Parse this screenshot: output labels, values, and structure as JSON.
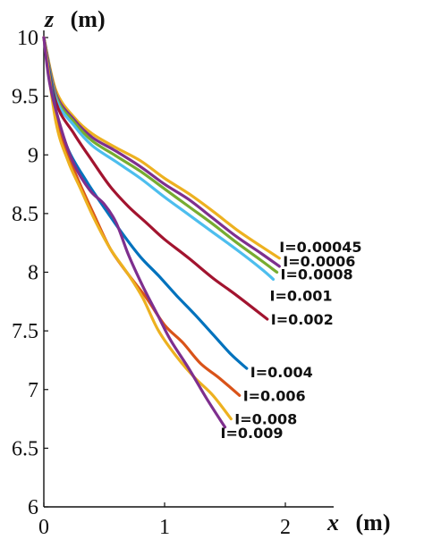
{
  "chart_data": {
    "type": "line",
    "title": "",
    "xlabel": {
      "var": "x",
      "unit": "(m)"
    },
    "ylabel": {
      "var": "z",
      "unit": "(m)"
    },
    "xlim": [
      0,
      2.4
    ],
    "ylim": [
      6,
      10
    ],
    "xticks": [
      0,
      1,
      2
    ],
    "yticks": [
      6,
      6.5,
      7,
      7.5,
      8,
      8.5,
      9,
      9.5,
      10
    ],
    "grid": false,
    "legend": "inline labels at line ends",
    "series": [
      {
        "name": "I=0.00045",
        "color": "#EDB120",
        "x": [
          0,
          0.1,
          0.25,
          0.4,
          0.6,
          0.8,
          1.0,
          1.2,
          1.4,
          1.6,
          1.8,
          1.95
        ],
        "y": [
          10,
          9.55,
          9.32,
          9.18,
          9.06,
          8.95,
          8.8,
          8.67,
          8.52,
          8.36,
          8.22,
          8.12
        ]
      },
      {
        "name": "I=0.0006",
        "color": "#7E2F8E",
        "x": [
          0,
          0.1,
          0.25,
          0.4,
          0.6,
          0.8,
          1.0,
          1.2,
          1.4,
          1.6,
          1.8,
          1.95
        ],
        "y": [
          10,
          9.52,
          9.3,
          9.15,
          9.03,
          8.9,
          8.75,
          8.62,
          8.46,
          8.3,
          8.16,
          8.05
        ]
      },
      {
        "name": "I=0.0008",
        "color": "#77AC30",
        "x": [
          0,
          0.1,
          0.25,
          0.4,
          0.6,
          0.8,
          1.0,
          1.2,
          1.4,
          1.6,
          1.8,
          1.93
        ],
        "y": [
          10,
          9.5,
          9.28,
          9.12,
          8.99,
          8.86,
          8.71,
          8.56,
          8.41,
          8.25,
          8.1,
          8.0
        ]
      },
      {
        "name": "I=0.001",
        "color": "#4DBEEE",
        "x": [
          0,
          0.1,
          0.25,
          0.4,
          0.6,
          0.8,
          1.0,
          1.2,
          1.4,
          1.6,
          1.8,
          1.9
        ],
        "y": [
          10,
          9.48,
          9.25,
          9.08,
          8.94,
          8.8,
          8.64,
          8.49,
          8.34,
          8.19,
          8.03,
          7.94
        ]
      },
      {
        "name": "I=0.002",
        "color": "#A2142F",
        "x": [
          0,
          0.1,
          0.25,
          0.4,
          0.55,
          0.7,
          0.85,
          1.0,
          1.2,
          1.4,
          1.6,
          1.85
        ],
        "y": [
          10,
          9.45,
          9.18,
          8.95,
          8.73,
          8.56,
          8.42,
          8.28,
          8.12,
          7.95,
          7.8,
          7.6
        ]
      },
      {
        "name": "I=0.004",
        "color": "#0072BD",
        "x": [
          0,
          0.1,
          0.2,
          0.35,
          0.5,
          0.65,
          0.8,
          0.95,
          1.1,
          1.25,
          1.4,
          1.55,
          1.68
        ],
        "y": [
          10,
          9.38,
          9.05,
          8.78,
          8.55,
          8.33,
          8.13,
          7.97,
          7.8,
          7.64,
          7.47,
          7.3,
          7.18
        ]
      },
      {
        "name": "I=0.006",
        "color": "#D95319",
        "x": [
          0,
          0.1,
          0.2,
          0.3,
          0.42,
          0.55,
          0.7,
          0.85,
          1.0,
          1.15,
          1.3,
          1.45,
          1.62
        ],
        "y": [
          10,
          9.32,
          9.0,
          8.75,
          8.48,
          8.2,
          7.98,
          7.78,
          7.55,
          7.4,
          7.22,
          7.1,
          6.95
        ]
      },
      {
        "name": "I=0.008",
        "color": "#EDB120",
        "x": [
          0,
          0.1,
          0.2,
          0.3,
          0.42,
          0.55,
          0.7,
          0.82,
          0.95,
          1.1,
          1.25,
          1.4,
          1.55
        ],
        "y": [
          10,
          9.28,
          8.95,
          8.72,
          8.45,
          8.2,
          7.98,
          7.78,
          7.5,
          7.28,
          7.1,
          6.95,
          6.75
        ]
      },
      {
        "name": "I=0.009",
        "color": "#7E2F8E",
        "x": [
          0,
          0.05,
          0.15,
          0.25,
          0.38,
          0.5,
          0.6,
          0.7,
          0.82,
          0.95,
          1.05,
          1.2,
          1.35,
          1.5
        ],
        "y": [
          10,
          9.6,
          9.2,
          8.92,
          8.7,
          8.58,
          8.42,
          8.15,
          7.88,
          7.62,
          7.42,
          7.18,
          6.92,
          6.68
        ]
      }
    ]
  }
}
